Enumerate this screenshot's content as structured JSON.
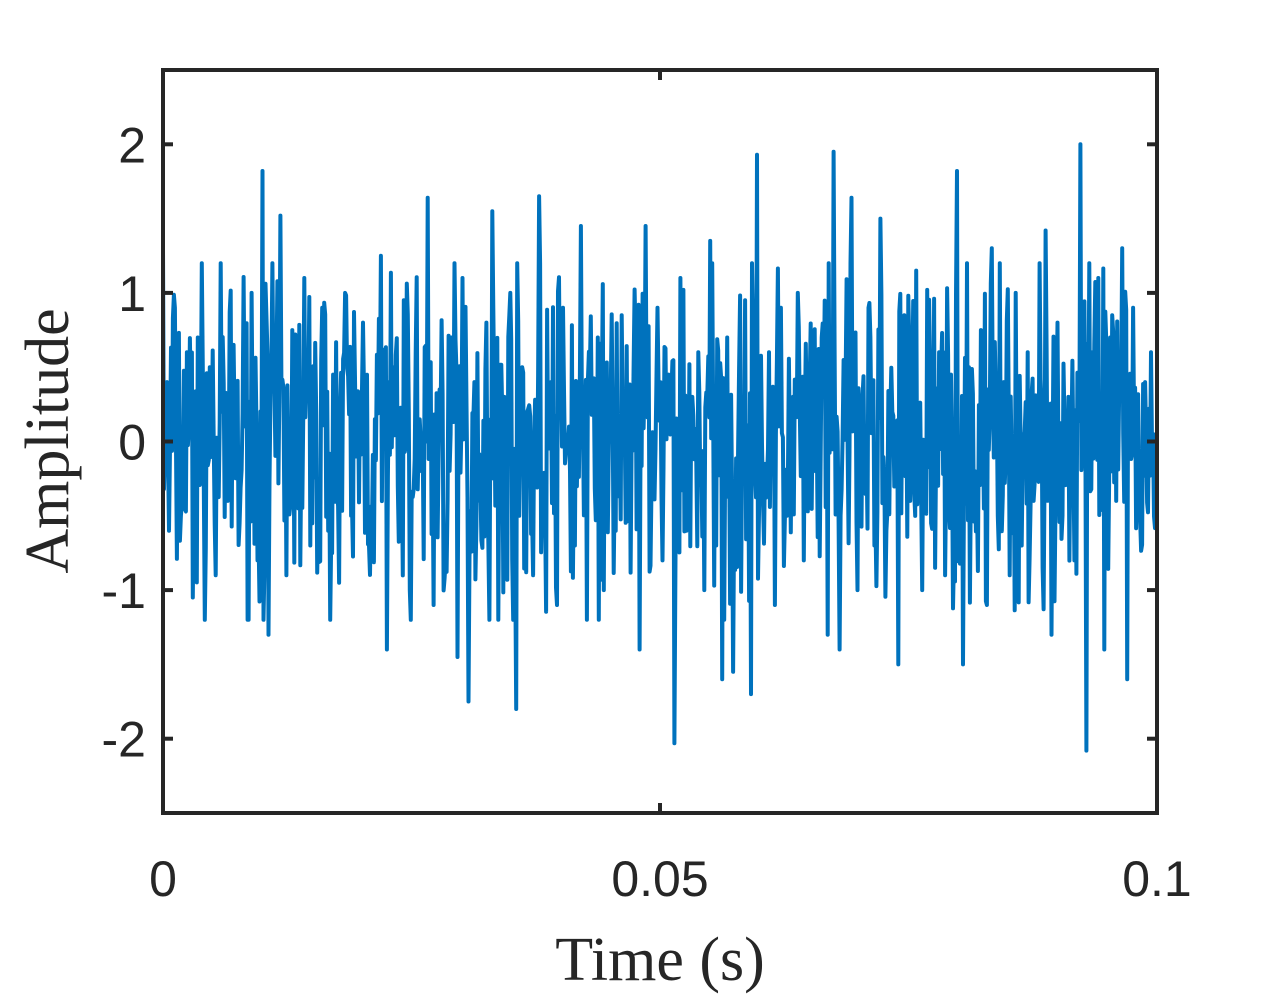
{
  "chart_data": {
    "type": "line",
    "title": "",
    "xlabel": "Time (s)",
    "ylabel": "Amplitude",
    "xlim": [
      0,
      0.1
    ],
    "ylim": [
      -2.5,
      2.5
    ],
    "x_ticks": [
      0,
      0.05,
      0.1
    ],
    "x_tick_labels": [
      "0",
      "0.05",
      "0.1"
    ],
    "y_ticks": [
      -2,
      -1,
      0,
      1,
      2
    ],
    "y_tick_labels": [
      "-2",
      "-1",
      "0",
      "1",
      "2"
    ],
    "grid": false,
    "colors": {
      "line": "#0072BD",
      "axes": "#262626"
    },
    "series": [
      {
        "description": "dense white-noise style signal, ~1000 samples",
        "sample_count": 1000,
        "x_start": 0,
        "x_end": 0.1,
        "values_sampled": [
          1.3,
          -0.6,
          0.9,
          -0.5,
          0.6,
          -1.05,
          0.7,
          -0.3,
          0.5,
          -0.9,
          0.2,
          -0.4,
          0.65,
          -0.55,
          0.1,
          1.0,
          -0.8,
          1.82,
          -1.3,
          0.4,
          1.52,
          -0.9,
          0.75,
          -0.45,
          1.1,
          -0.7,
          0.2,
          0.9,
          -0.6,
          0.45,
          -0.95,
          1.0,
          -0.5,
          0.3,
          0.8,
          -0.7,
          0.15,
          1.25,
          -1.4,
          0.5,
          -0.3,
          0.95,
          -1.0,
          0.6,
          -0.2,
          1.64,
          -1.1,
          0.35,
          -0.8,
          0.7,
          -1.45,
          1.1,
          -1.75,
          0.4,
          -0.3,
          0.8,
          1.55,
          -1.2,
          0.3,
          1.0,
          -1.8,
          0.5,
          0.2,
          -0.9,
          1.65,
          -0.5,
          0.4,
          -1.1,
          0.9,
          0.1,
          -0.7,
          1.45,
          -1.2,
          0.3,
          0.7,
          -1.0,
          0.25,
          -0.6,
          0.85,
          -0.4,
          0.5,
          -1.4,
          1.45,
          -0.3,
          0.9,
          -0.8,
          0.45,
          -2.03,
          1.1,
          -0.6,
          0.3,
          0.6,
          -1.0,
          1.35,
          -0.7,
          -1.6,
          0.7,
          -1.55,
          0.5,
          0.95,
          -1.7,
          1.93,
          -0.4,
          0.6,
          -1.1,
          0.9,
          -0.5,
          0.3,
          1.0,
          -0.8,
          0.4,
          -0.2,
          0.7,
          -1.3,
          1.95,
          -1.4,
          0.4,
          1.64,
          -1.0,
          0.3,
          0.9,
          -0.7,
          1.5,
          -0.6,
          0.2,
          -1.5,
          0.85,
          -0.4,
          1.15,
          -1.0,
          1.02,
          -0.3,
          0.6,
          -0.9,
          0.45,
          1.82,
          -1.5,
          0.5,
          -0.2,
          0.75,
          -1.1,
          1.3,
          -0.5,
          0.4,
          -0.9,
          1.0,
          -0.7,
          0.6,
          -0.4,
          1.2,
          1.42,
          -1.3,
          0.8,
          -0.5,
          0.3,
          -0.8,
          2.0,
          -2.08,
          0.6,
          1.1,
          -1.4,
          0.7,
          -0.4,
          1.3,
          -1.6,
          0.9,
          -0.3,
          0.4,
          0.6,
          -0.6
        ]
      }
    ]
  }
}
